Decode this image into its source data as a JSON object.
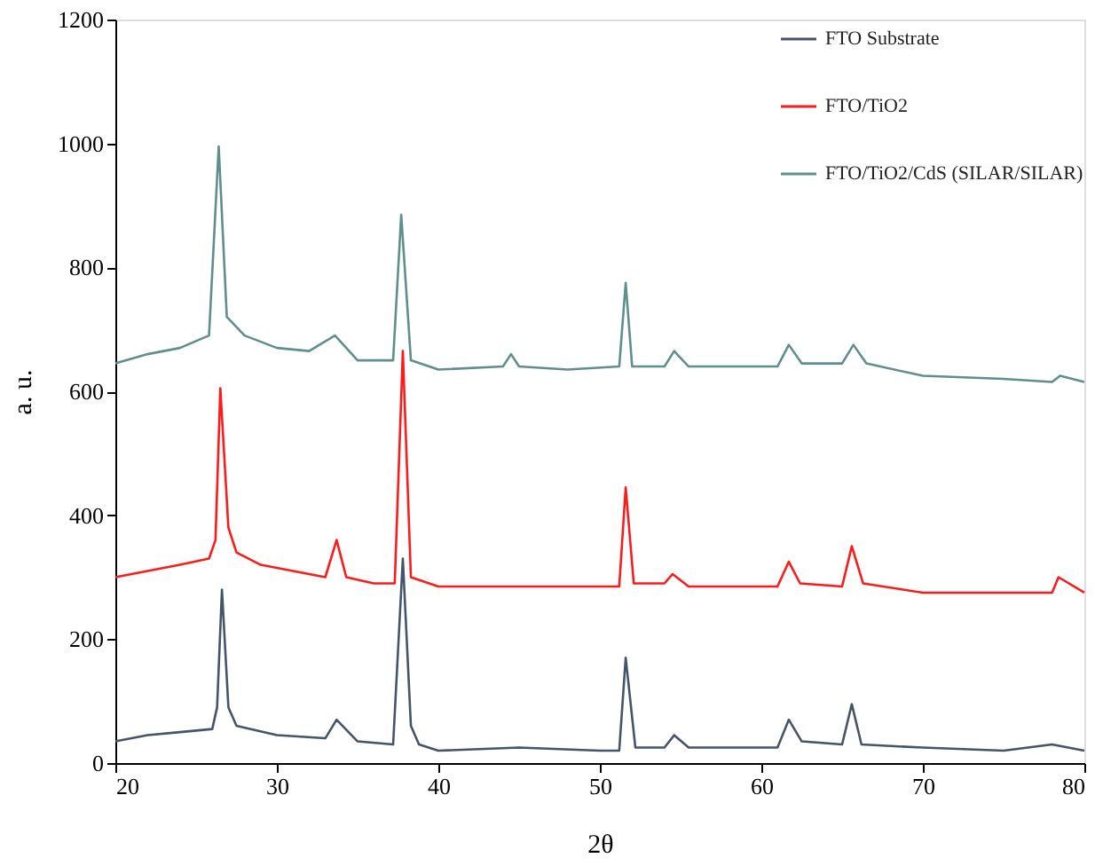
{
  "chart_data": {
    "type": "line",
    "xlabel": "2θ",
    "ylabel": "a. u.",
    "xlim": [
      20,
      80
    ],
    "ylim": [
      0,
      1200
    ],
    "xticks": [
      20,
      30,
      40,
      50,
      60,
      70,
      80
    ],
    "yticks": [
      0,
      200,
      400,
      600,
      800,
      1000,
      1200
    ],
    "grid": false,
    "legend": "top right",
    "marker": "none",
    "line_style": "solid",
    "series": [
      {
        "name": "FTO Substrate",
        "color": "#44546a",
        "x": [
          20,
          22,
          24,
          26,
          26.3,
          26.6,
          27,
          27.5,
          30,
          33,
          33.7,
          35,
          37.2,
          37.8,
          38.3,
          38.8,
          40,
          45,
          50,
          51.2,
          51.6,
          52.2,
          54,
          54.6,
          55.5,
          61,
          61.7,
          62.5,
          65,
          65.6,
          66.2,
          70,
          75,
          78,
          80
        ],
        "values": [
          35,
          45,
          50,
          55,
          90,
          280,
          90,
          60,
          45,
          40,
          70,
          35,
          30,
          330,
          60,
          30,
          20,
          25,
          20,
          20,
          170,
          25,
          25,
          45,
          25,
          25,
          70,
          35,
          30,
          95,
          30,
          25,
          20,
          30,
          20
        ]
      },
      {
        "name": "FTO/TiO2",
        "color": "#ff1a1a",
        "x": [
          20,
          22,
          24,
          25.8,
          26.2,
          26.5,
          27,
          27.5,
          29,
          31,
          33,
          33.7,
          34.3,
          36,
          37.3,
          37.8,
          38.3,
          40,
          44,
          48,
          51.2,
          51.6,
          52.1,
          54,
          54.5,
          55.5,
          61,
          61.7,
          62.4,
          65,
          65.6,
          66.3,
          70,
          75,
          78,
          78.4,
          80
        ],
        "values": [
          300,
          310,
          320,
          330,
          360,
          605,
          380,
          340,
          320,
          310,
          300,
          360,
          300,
          290,
          290,
          665,
          300,
          285,
          285,
          285,
          285,
          445,
          290,
          290,
          305,
          285,
          285,
          325,
          290,
          285,
          350,
          290,
          275,
          275,
          275,
          300,
          275
        ]
      },
      {
        "name": "FTO/TiO2/CdS (SILAR/SILAR)",
        "color": "#5f8f8c",
        "x": [
          20,
          22,
          24,
          25.8,
          26.4,
          26.9,
          28,
          30,
          32,
          33.6,
          35,
          37.2,
          37.7,
          38.3,
          40,
          44,
          44.5,
          45,
          48,
          51.2,
          51.6,
          52,
          54,
          54.6,
          55.5,
          61,
          61.7,
          62.5,
          65,
          65.7,
          66.5,
          70,
          75,
          78,
          78.5,
          80
        ],
        "values": [
          645,
          660,
          670,
          690,
          995,
          720,
          690,
          670,
          665,
          690,
          650,
          650,
          885,
          650,
          635,
          640,
          660,
          640,
          635,
          640,
          775,
          640,
          640,
          665,
          640,
          640,
          675,
          645,
          645,
          675,
          645,
          625,
          620,
          615,
          625,
          615
        ]
      }
    ]
  }
}
